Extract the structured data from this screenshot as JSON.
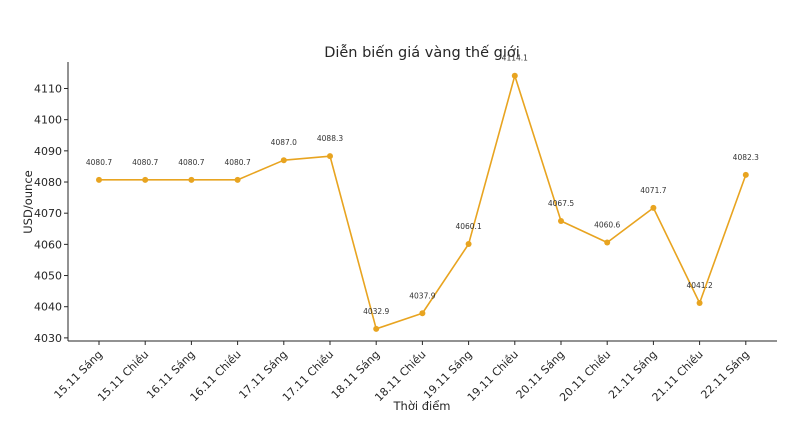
{
  "chart_data": {
    "type": "line",
    "title": "Diễn biến giá vàng thế giới",
    "xlabel": "Thời điểm",
    "ylabel": "USD/ounce",
    "categories": [
      "15.11 Sáng",
      "15.11 Chiều",
      "16.11 Sáng",
      "16.11 Chiều",
      "17.11 Sáng",
      "17.11 Chiều",
      "18.11 Sáng",
      "18.11 Chiều",
      "19.11 Sáng",
      "19.11 Chiều",
      "20.11 Sáng",
      "20.11 Chiều",
      "21.11 Sáng",
      "21.11 Chiều",
      "22.11 Sáng"
    ],
    "series": [
      {
        "values": [
          4080.7,
          4080.7,
          4080.7,
          4080.7,
          4087.0,
          4088.3,
          4032.9,
          4037.9,
          4060.1,
          4114.1,
          4067.5,
          4060.6,
          4071.7,
          4041.2,
          4082.3
        ],
        "labels": [
          "4080.7",
          "4080.7",
          "4080.7",
          "4080.7",
          "4087.0",
          "4088.3",
          "4032.9",
          "4037.9",
          "4060.1",
          "4114.1",
          "4067.5",
          "4060.6",
          "4071.7",
          "4041.2",
          "4082.3"
        ],
        "color": "#E8A420"
      }
    ],
    "yticks": [
      "4030",
      "4040",
      "4050",
      "4060",
      "4070",
      "4080",
      "4090",
      "4100",
      "4110"
    ],
    "ylim": [
      4029,
      4118.5
    ],
    "grid": false,
    "legend": "none"
  }
}
